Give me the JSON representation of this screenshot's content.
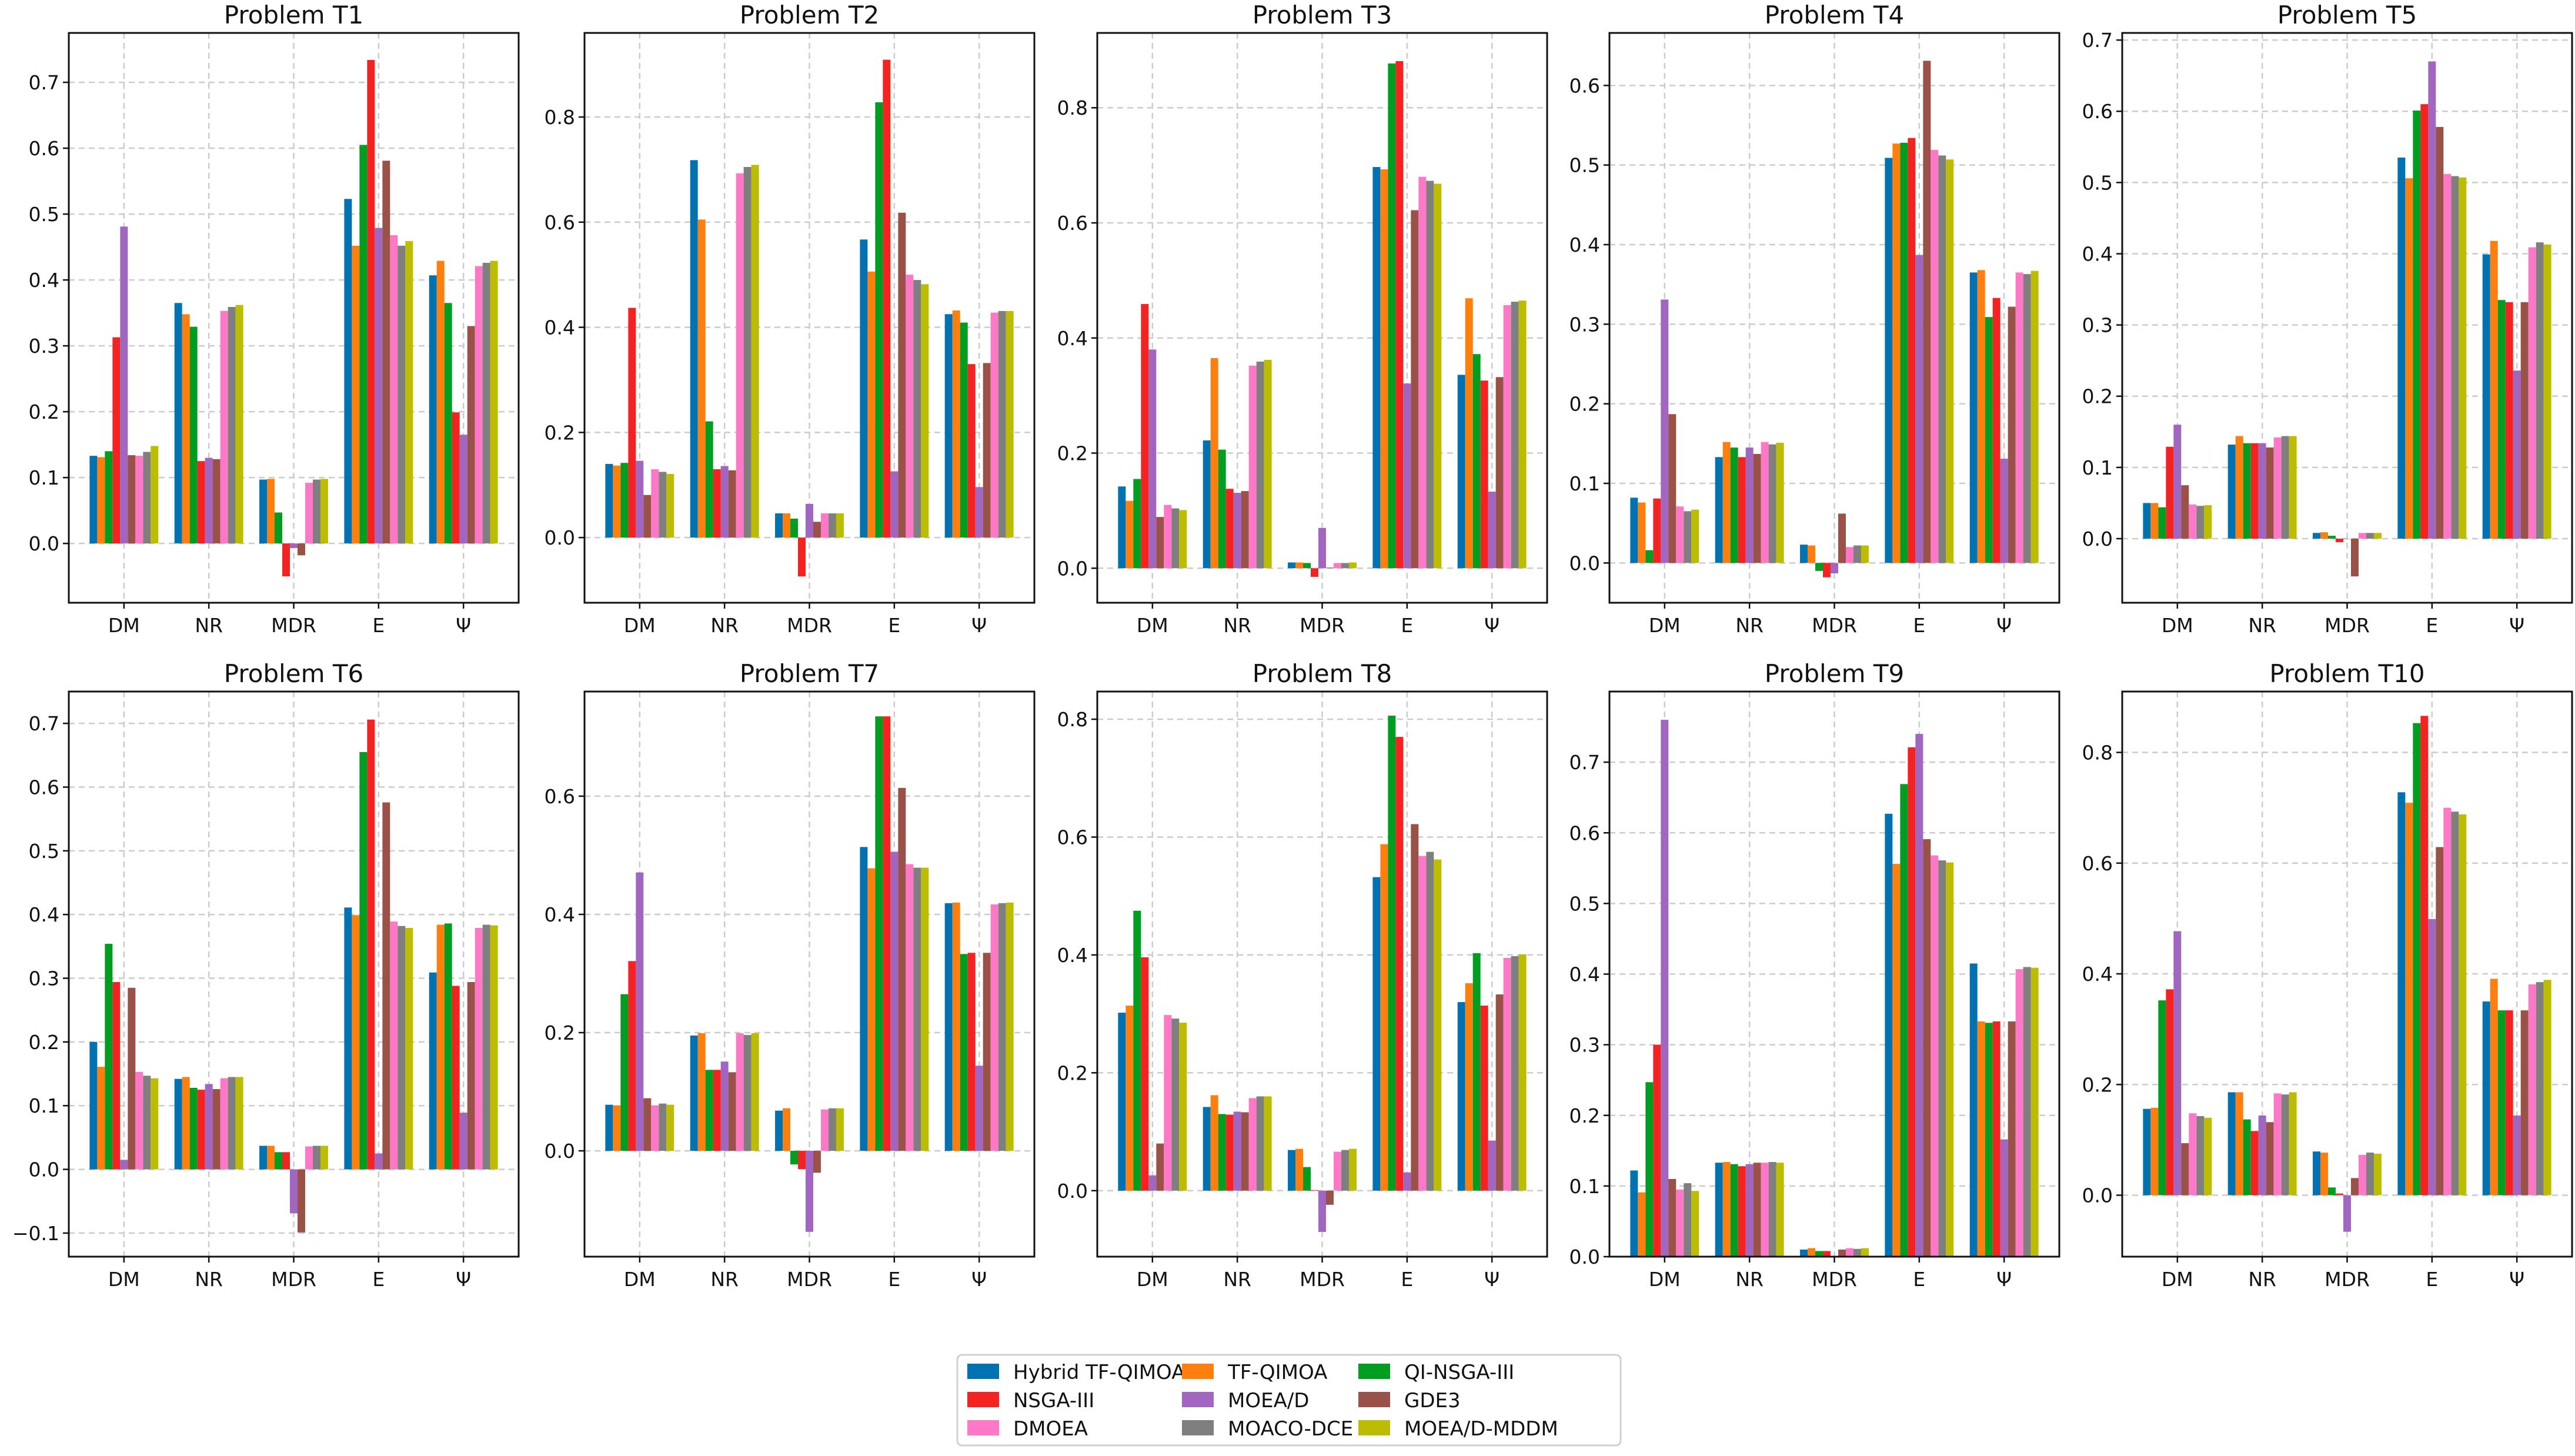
{
  "chart_data": {
    "type": "bar",
    "layout": "2x5 grid of grouped bar subplots",
    "legend_position": "bottom-center",
    "grid": true,
    "series_names": [
      "Hybrid TF-QIMOA",
      "TF-QIMOA",
      "QI-NSGA-III",
      "NSGA-III",
      "MOEA/D",
      "GDE3",
      "DMOEA",
      "MOACO-DCE",
      "MOEA/D-MDDM"
    ],
    "series_colors": [
      "#0072b2",
      "#ff7f0e",
      "#009e20",
      "#f52222",
      "#a066c0",
      "#9a5248",
      "#ff78c8",
      "#7f7f7f",
      "#bcbd00"
    ],
    "legend_order": [
      0,
      3,
      6,
      1,
      4,
      7,
      2,
      5,
      8
    ],
    "categories": [
      "DM",
      "NR",
      "MDR",
      "E",
      "Ψ"
    ],
    "subplots": [
      {
        "title": "Problem T1",
        "ylim": [
          -0.09,
          0.775
        ],
        "yticks": [
          0,
          0.1,
          0.2,
          0.3,
          0.4,
          0.5,
          0.6,
          0.7
        ],
        "values": [
          [
            0.133,
            0.131,
            0.14,
            0.313,
            0.481,
            0.134,
            0.133,
            0.139,
            0.148
          ],
          [
            0.365,
            0.348,
            0.329,
            0.125,
            0.13,
            0.128,
            0.353,
            0.359,
            0.362
          ],
          [
            0.097,
            0.098,
            0.047,
            -0.05,
            -0.007,
            -0.018,
            0.092,
            0.097,
            0.098
          ],
          [
            0.523,
            0.452,
            0.605,
            0.734,
            0.479,
            0.581,
            0.468,
            0.452,
            0.459
          ],
          [
            0.407,
            0.429,
            0.365,
            0.199,
            0.165,
            0.33,
            0.421,
            0.426,
            0.429
          ]
        ]
      },
      {
        "title": "Problem T2",
        "ylim": [
          -0.124,
          0.96
        ],
        "yticks": [
          0,
          0.2,
          0.4,
          0.6,
          0.8
        ],
        "values": [
          [
            0.14,
            0.137,
            0.142,
            0.437,
            0.146,
            0.081,
            0.13,
            0.125,
            0.121
          ],
          [
            0.718,
            0.605,
            0.221,
            0.13,
            0.136,
            0.128,
            0.693,
            0.705,
            0.709
          ],
          [
            0.046,
            0.046,
            0.036,
            -0.074,
            0.064,
            0.03,
            0.046,
            0.046,
            0.046
          ],
          [
            0.567,
            0.506,
            0.828,
            0.909,
            0.126,
            0.618,
            0.5,
            0.49,
            0.482
          ],
          [
            0.425,
            0.432,
            0.409,
            0.33,
            0.096,
            0.332,
            0.428,
            0.431,
            0.431
          ]
        ]
      },
      {
        "title": "Problem T3",
        "ylim": [
          -0.06,
          0.93
        ],
        "yticks": [
          0,
          0.2,
          0.4,
          0.6,
          0.8
        ],
        "values": [
          [
            0.142,
            0.117,
            0.155,
            0.459,
            0.38,
            0.089,
            0.11,
            0.104,
            0.101
          ],
          [
            0.222,
            0.365,
            0.206,
            0.138,
            0.131,
            0.134,
            0.352,
            0.359,
            0.362
          ],
          [
            0.01,
            0.01,
            0.009,
            -0.015,
            0.07,
            0.001,
            0.009,
            0.009,
            0.01
          ],
          [
            0.697,
            0.693,
            0.877,
            0.881,
            0.321,
            0.622,
            0.68,
            0.673,
            0.668
          ],
          [
            0.336,
            0.469,
            0.372,
            0.326,
            0.133,
            0.332,
            0.457,
            0.463,
            0.465
          ]
        ]
      },
      {
        "title": "Problem T4",
        "ylim": [
          -0.05,
          0.666
        ],
        "yticks": [
          0,
          0.1,
          0.2,
          0.3,
          0.4,
          0.5,
          0.6
        ],
        "values": [
          [
            0.082,
            0.076,
            0.016,
            0.081,
            0.331,
            0.187,
            0.071,
            0.065,
            0.067
          ],
          [
            0.133,
            0.152,
            0.145,
            0.133,
            0.145,
            0.137,
            0.152,
            0.149,
            0.151
          ],
          [
            0.023,
            0.022,
            -0.01,
            -0.018,
            -0.013,
            0.062,
            0.02,
            0.022,
            0.022
          ],
          [
            0.509,
            0.527,
            0.528,
            0.534,
            0.387,
            0.631,
            0.519,
            0.512,
            0.507
          ],
          [
            0.365,
            0.368,
            0.309,
            0.333,
            0.131,
            0.322,
            0.365,
            0.363,
            0.367
          ]
        ]
      },
      {
        "title": "Problem T5",
        "ylim": [
          -0.09,
          0.71
        ],
        "yticks": [
          0,
          0.1,
          0.2,
          0.3,
          0.4,
          0.5,
          0.6,
          0.7
        ],
        "values": [
          [
            0.05,
            0.05,
            0.044,
            0.129,
            0.16,
            0.075,
            0.048,
            0.046,
            0.047
          ],
          [
            0.132,
            0.144,
            0.134,
            0.134,
            0.134,
            0.128,
            0.142,
            0.144,
            0.144
          ],
          [
            0.008,
            0.009,
            0.004,
            -0.005,
            0.0,
            -0.053,
            0.008,
            0.008,
            0.008
          ],
          [
            0.535,
            0.506,
            0.601,
            0.61,
            0.67,
            0.578,
            0.512,
            0.509,
            0.507
          ],
          [
            0.399,
            0.418,
            0.335,
            0.332,
            0.236,
            0.332,
            0.409,
            0.416,
            0.413
          ]
        ]
      },
      {
        "title": "Problem T6",
        "ylim": [
          -0.137,
          0.75
        ],
        "yticks": [
          -0.1,
          0,
          0.1,
          0.2,
          0.3,
          0.4,
          0.5,
          0.6,
          0.7
        ],
        "values": [
          [
            0.2,
            0.161,
            0.354,
            0.294,
            0.015,
            0.285,
            0.153,
            0.147,
            0.143
          ],
          [
            0.142,
            0.145,
            0.128,
            0.125,
            0.134,
            0.126,
            0.143,
            0.145,
            0.145
          ],
          [
            0.037,
            0.037,
            0.027,
            0.027,
            -0.069,
            -0.099,
            0.036,
            0.037,
            0.037
          ],
          [
            0.411,
            0.399,
            0.655,
            0.706,
            0.025,
            0.576,
            0.389,
            0.382,
            0.379
          ],
          [
            0.309,
            0.384,
            0.386,
            0.288,
            0.089,
            0.294,
            0.379,
            0.384,
            0.383
          ]
        ]
      },
      {
        "title": "Problem T7",
        "ylim": [
          -0.179,
          0.777
        ],
        "yticks": [
          0,
          0.2,
          0.4,
          0.6
        ],
        "values": [
          [
            0.078,
            0.077,
            0.265,
            0.321,
            0.471,
            0.089,
            0.077,
            0.08,
            0.078
          ],
          [
            0.195,
            0.199,
            0.137,
            0.137,
            0.151,
            0.133,
            0.199,
            0.196,
            0.199
          ],
          [
            0.068,
            0.072,
            -0.023,
            -0.031,
            -0.137,
            -0.037,
            0.07,
            0.072,
            0.072
          ],
          [
            0.514,
            0.478,
            0.735,
            0.735,
            0.506,
            0.614,
            0.485,
            0.479,
            0.479
          ],
          [
            0.419,
            0.42,
            0.333,
            0.335,
            0.144,
            0.335,
            0.417,
            0.419,
            0.42
          ]
        ]
      },
      {
        "title": "Problem T8",
        "ylim": [
          -0.112,
          0.847
        ],
        "yticks": [
          0,
          0.2,
          0.4,
          0.6,
          0.8
        ],
        "values": [
          [
            0.302,
            0.314,
            0.475,
            0.396,
            0.026,
            0.08,
            0.298,
            0.292,
            0.285
          ],
          [
            0.142,
            0.162,
            0.13,
            0.129,
            0.134,
            0.133,
            0.157,
            0.16,
            0.16
          ],
          [
            0.069,
            0.071,
            0.04,
            0.001,
            -0.07,
            -0.024,
            0.066,
            0.069,
            0.071
          ],
          [
            0.532,
            0.588,
            0.806,
            0.77,
            0.031,
            0.622,
            0.568,
            0.575,
            0.562
          ],
          [
            0.32,
            0.352,
            0.403,
            0.314,
            0.085,
            0.333,
            0.395,
            0.398,
            0.401
          ]
        ]
      },
      {
        "title": "Problem T9",
        "ylim": [
          0,
          0.8
        ],
        "yticks": [
          0,
          0.1,
          0.2,
          0.3,
          0.4,
          0.5,
          0.6,
          0.7
        ],
        "values": [
          [
            0.122,
            0.091,
            0.247,
            0.3,
            0.76,
            0.11,
            0.095,
            0.104,
            0.093
          ],
          [
            0.133,
            0.134,
            0.131,
            0.128,
            0.131,
            0.133,
            0.133,
            0.134,
            0.133
          ],
          [
            0.01,
            0.012,
            0.008,
            0.008,
            0.0,
            0.01,
            0.012,
            0.011,
            0.012
          ],
          [
            0.627,
            0.556,
            0.669,
            0.721,
            0.74,
            0.591,
            0.568,
            0.561,
            0.558
          ],
          [
            0.415,
            0.333,
            0.331,
            0.333,
            0.166,
            0.333,
            0.407,
            0.41,
            0.409
          ]
        ]
      },
      {
        "title": "Problem T10",
        "ylim": [
          -0.111,
          0.91
        ],
        "yticks": [
          0,
          0.2,
          0.4,
          0.6,
          0.8
        ],
        "values": [
          [
            0.156,
            0.158,
            0.352,
            0.372,
            0.477,
            0.094,
            0.148,
            0.143,
            0.14
          ],
          [
            0.186,
            0.186,
            0.137,
            0.116,
            0.144,
            0.132,
            0.184,
            0.182,
            0.186
          ],
          [
            0.079,
            0.077,
            0.014,
            0.003,
            -0.066,
            0.031,
            0.073,
            0.077,
            0.075
          ],
          [
            0.728,
            0.709,
            0.853,
            0.866,
            0.499,
            0.629,
            0.7,
            0.693,
            0.688
          ],
          [
            0.35,
            0.391,
            0.334,
            0.334,
            0.144,
            0.334,
            0.381,
            0.385,
            0.389
          ]
        ]
      }
    ]
  }
}
